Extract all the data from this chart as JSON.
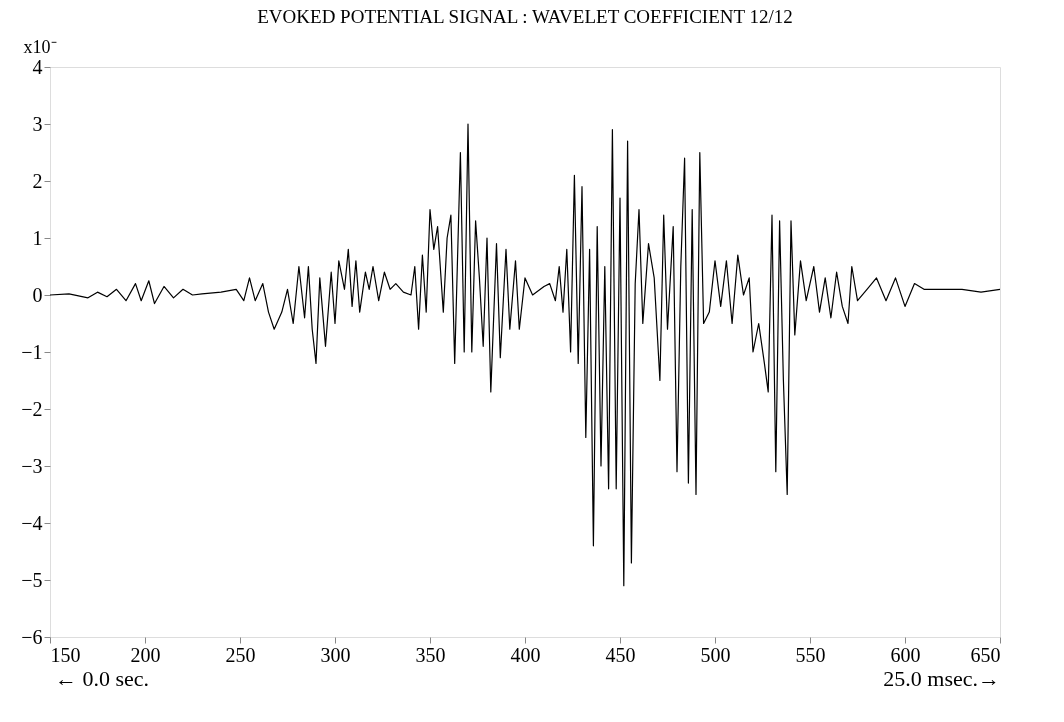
{
  "chart_data": {
    "type": "line",
    "title": "EVOKED POTENTIAL SIGNAL : WAVELET COEFFICIENT 12/12",
    "ylabel": "x10⁻",
    "annotations": [
      "← 0.0 sec.",
      "25.0 msec.→"
    ],
    "x": [
      150,
      160,
      170,
      175,
      180,
      185,
      190,
      195,
      198,
      202,
      205,
      210,
      215,
      220,
      225,
      230,
      240,
      248,
      252,
      255,
      258,
      262,
      265,
      268,
      272,
      275,
      278,
      281,
      284,
      286,
      288,
      290,
      292,
      295,
      298,
      300,
      302,
      305,
      307,
      309,
      311,
      313,
      316,
      318,
      320,
      323,
      326,
      329,
      332,
      336,
      340,
      342,
      344,
      346,
      348,
      350,
      352,
      354,
      357,
      359,
      361,
      363,
      366,
      368,
      370,
      372,
      374,
      376,
      378,
      380,
      382,
      385,
      387,
      390,
      392,
      395,
      397,
      400,
      404,
      410,
      413,
      416,
      418,
      420,
      422,
      424,
      426,
      428,
      430,
      432,
      434,
      436,
      438,
      440,
      442,
      444,
      446,
      448,
      450,
      452,
      454,
      456,
      458,
      460,
      462,
      465,
      468,
      471,
      473,
      475,
      478,
      480,
      482,
      484,
      486,
      488,
      490,
      492,
      494,
      497,
      500,
      503,
      506,
      509,
      512,
      515,
      518,
      520,
      523,
      526,
      528,
      530,
      532,
      534,
      536,
      538,
      540,
      542,
      545,
      548,
      552,
      555,
      558,
      561,
      564,
      567,
      570,
      572,
      575,
      580,
      585,
      590,
      595,
      600,
      605,
      610,
      620,
      630,
      640,
      650
    ],
    "series": [
      {
        "color": "#000000",
        "values": [
          0,
          0.02,
          -0.05,
          0.05,
          -0.03,
          0.1,
          -0.1,
          0.2,
          -0.1,
          0.25,
          -0.15,
          0.15,
          -0.05,
          0.1,
          0,
          0.02,
          0.05,
          0.1,
          -0.1,
          0.3,
          -0.1,
          0.2,
          -0.3,
          -0.6,
          -0.3,
          0.1,
          -0.5,
          0.5,
          -0.4,
          0.5,
          -0.6,
          -1.2,
          0.3,
          -0.9,
          0.4,
          -0.5,
          0.6,
          0.1,
          0.8,
          -0.2,
          0.6,
          -0.3,
          0.4,
          0.1,
          0.5,
          -0.1,
          0.4,
          0.1,
          0.2,
          0.05,
          0,
          0.5,
          -0.6,
          0.7,
          -0.3,
          1.5,
          0.8,
          1.2,
          -0.3,
          1.0,
          1.4,
          -1.2,
          2.5,
          -1.0,
          3.0,
          -1.0,
          1.3,
          0.3,
          -0.9,
          1.0,
          -1.7,
          0.9,
          -1.1,
          0.8,
          -0.6,
          0.6,
          -0.6,
          0.3,
          0,
          0.15,
          0.2,
          -0.1,
          0.5,
          -0.3,
          0.8,
          -1.0,
          2.1,
          -1.2,
          1.9,
          -2.5,
          0.8,
          -4.4,
          1.2,
          -3.0,
          0.5,
          -3.4,
          2.9,
          -3.4,
          1.7,
          -5.1,
          2.7,
          -4.7,
          0.2,
          1.5,
          -0.5,
          0.9,
          0.3,
          -1.5,
          1.4,
          -0.6,
          1.2,
          -3.1,
          0.5,
          2.4,
          -3.3,
          1.5,
          -3.5,
          2.5,
          -0.5,
          -0.3,
          0.6,
          -0.2,
          0.6,
          -0.5,
          0.7,
          0,
          0.3,
          -1.0,
          -0.5,
          -1.2,
          -1.7,
          1.4,
          -3.1,
          1.3,
          -1.5,
          -3.5,
          1.3,
          -0.7,
          0.6,
          -0.1,
          0.5,
          -0.3,
          0.3,
          -0.4,
          0.4,
          -0.2,
          -0.5,
          0.5,
          -0.1,
          0.1,
          0.3,
          -0.1,
          0.3,
          -0.2,
          0.2,
          0.1,
          0.1,
          0.1,
          0.05,
          0.1
        ]
      }
    ],
    "xlim": [
      150,
      650
    ],
    "xticks": [
      150,
      200,
      250,
      300,
      350,
      400,
      450,
      500,
      550,
      600,
      650
    ],
    "ylim": [
      -6,
      4
    ],
    "yticks": [
      -6,
      -5,
      -4,
      -3,
      -2,
      -1,
      0,
      1,
      2,
      3,
      4
    ],
    "grid": false,
    "legend": false,
    "marker": "none",
    "line_style": "solid"
  }
}
